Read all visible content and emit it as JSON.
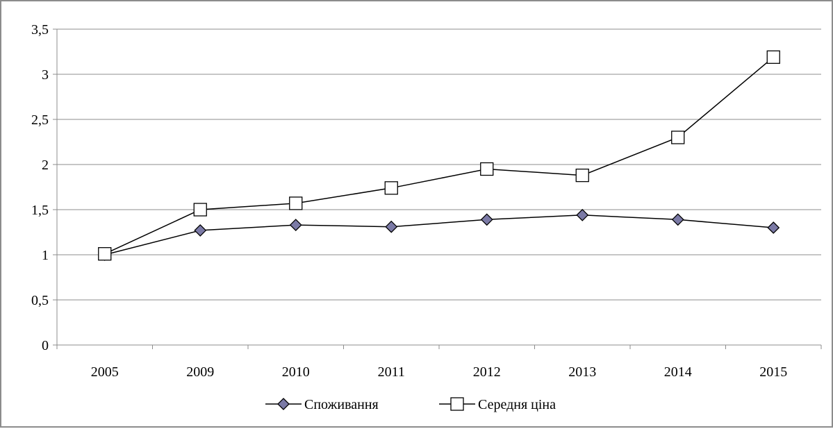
{
  "chart_data": {
    "type": "line",
    "categories": [
      "2005",
      "2009",
      "2010",
      "2011",
      "2012",
      "2013",
      "2014",
      "2015"
    ],
    "series": [
      {
        "name": "Споживання",
        "marker": "diamond",
        "marker_color": "#7b7aa6",
        "values": [
          1.0,
          1.27,
          1.33,
          1.31,
          1.39,
          1.44,
          1.39,
          1.3
        ]
      },
      {
        "name": "Середня ціна",
        "marker": "square",
        "marker_color": "#ffffff",
        "values": [
          1.01,
          1.5,
          1.57,
          1.74,
          1.95,
          1.88,
          2.3,
          3.19
        ]
      }
    ],
    "y_ticks": [
      "0",
      "0,5",
      "1",
      "1,5",
      "2",
      "2,5",
      "3",
      "3,5"
    ],
    "ylim": [
      0,
      3.5
    ],
    "grid": true,
    "legend_position": "bottom"
  }
}
